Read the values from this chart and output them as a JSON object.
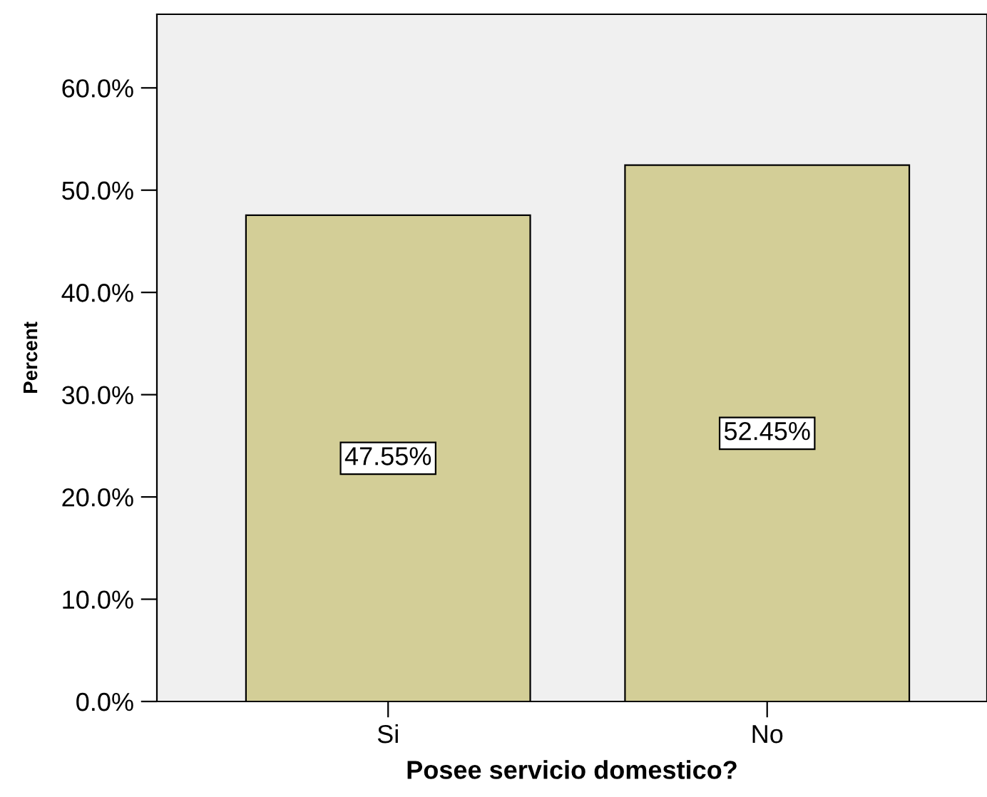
{
  "chart_data": {
    "type": "bar",
    "xlabel": "Posee servicio domestico?",
    "ylabel": "Percent",
    "categories": [
      "Si",
      "No"
    ],
    "values": [
      47.55,
      52.45
    ],
    "color": "#d3ce97",
    "value_labels": [
      "47.55%",
      "52.45%"
    ],
    "ylim": [
      0,
      67.2
    ],
    "yticks": [
      {
        "value": 0,
        "label": "0.0%"
      },
      {
        "value": 10,
        "label": "10.0%"
      },
      {
        "value": 20,
        "label": "20.0%"
      },
      {
        "value": 30,
        "label": "30.0%"
      },
      {
        "value": 40,
        "label": "40.0%"
      },
      {
        "value": 50,
        "label": "50.0%"
      },
      {
        "value": 60,
        "label": "60.0%"
      }
    ],
    "grid": false,
    "legend": false
  }
}
